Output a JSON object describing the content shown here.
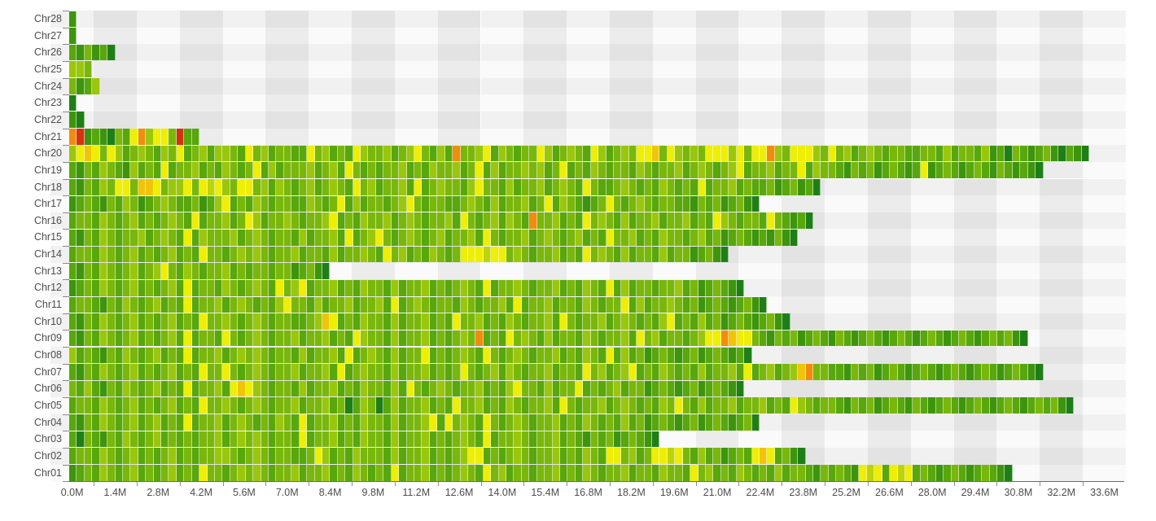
{
  "chart_data": {
    "type": "heatmap",
    "title": "",
    "description": "Per-chromosome density heatmap: each chromosome drawn as a horizontal bar of fixed-size window bins colored from green (low) through yellow and orange to red (high)",
    "xlabel": "",
    "ylabel": "",
    "x_unit": "M",
    "bin_size_mb": 0.25,
    "x_axis_range_mb": [
      0.0,
      33.6
    ],
    "x_tick_labels": [
      "0.0M",
      "1.4M",
      "2.8M",
      "4.2M",
      "5.6M",
      "7.0M",
      "8.4M",
      "9.8M",
      "11.2M",
      "12.6M",
      "14.0M",
      "15.4M",
      "16.8M",
      "18.2M",
      "19.6M",
      "21.0M",
      "22.4M",
      "23.8M",
      "25.2M",
      "26.6M",
      "28.0M",
      "29.4M",
      "30.8M",
      "32.2M",
      "33.6M"
    ],
    "legend_position": "none",
    "grid": "alternating checkerboard split-area",
    "palette": {
      "0": "#1e7f16",
      "1": "#3d950d",
      "2": "#57a70d",
      "3": "#79b70c",
      "4": "#9ac70d",
      "5": "#bdd40b",
      "6": "#eeee07",
      "7": "#f0c40a",
      "8": "#ee8d0e",
      "9": "#d53310"
    },
    "palette_meaning": "0=lowest density (dark green) … 6=yellow, 7=golden, 8=orange, 9=highest density (red)",
    "rows": [
      {
        "name": "Chr28",
        "length_mb": 0.25,
        "cells": "1"
      },
      {
        "name": "Chr27",
        "length_mb": 0.25,
        "cells": "1"
      },
      {
        "name": "Chr26",
        "length_mb": 1.5,
        "cells": "213120"
      },
      {
        "name": "Chr25",
        "length_mb": 0.75,
        "cells": "443"
      },
      {
        "name": "Chr24",
        "length_mb": 1.0,
        "cells": "3124"
      },
      {
        "name": "Chr23",
        "length_mb": 0.25,
        "cells": "0"
      },
      {
        "name": "Chr22",
        "length_mb": 0.5,
        "cells": "10"
      },
      {
        "name": "Chr21",
        "length_mb": 4.25,
        "cells": "89121032684663922"
      },
      {
        "name": "Chr20",
        "length_mb": 33.25,
        "cells": "4676364234324362342443263423322634232643342346324283346243233642343264234366736434366646366843666436342343233223324233241203212310210"
      },
      {
        "name": "Chr19",
        "length_mb": 31.75,
        "cells": "2132432142326233423243236242333423426323233423243342362423343423623243233243233423432346233423362433213231232126123212321321210"
      },
      {
        "name": "Chr18",
        "length_mb": 24.5,
        "cells": "21324366377634463656436634243234234326342334262343324633242334234326322343232432326233423223123120"
      },
      {
        "name": "Chr17",
        "length_mb": 22.5,
        "cells": "123213243123432231246232432332243236242332346323322343242334236243212363234323322132312310"
      },
      {
        "name": "Chr16",
        "length_mb": 24.25,
        "cells": "2332432342323432623342364233432334623243342343233426323424328334232634324233423342326432332632120"
      },
      {
        "name": "Chr15",
        "length_mb": 23.75,
        "cells": "21324323342343262433342343233242334262346323432342334263233423432342326334232433234231232121310"
      },
      {
        "name": "Chr14",
        "length_mb": 21.5,
        "cells": "23324323423234232633234343233423324233432634232432366656634323342326343242332423312310"
      },
      {
        "name": "Chr13",
        "length_mb": 8.5,
        "cells": "2132432342346324323342323323312310"
      },
      {
        "name": "Chr12",
        "length_mb": 22.0,
        "cells": "1232432342323426233243234326346233423243324233423234326233432334232432624233233423123210"
      },
      {
        "name": "Chr11",
        "length_mb": 22.75,
        "cells": "2332132432342326233423432324633242334233426234323324323342623342332432336242334323123212310"
      },
      {
        "name": "Chr10",
        "length_mb": 23.5,
        "cells": "2132432342323423263343234323322347623243324233423263342324323342632334234323246232423123212310"
      },
      {
        "name": "Chr09",
        "length_mb": 31.25,
        "cells": "21324323423234262332632343233423342326433242334232343823263432423324323342634233234668766321323123213212321232123212321232310"
      },
      {
        "name": "Chr08",
        "length_mb": 22.25,
        "cells": "42321324323423262334234343233242334262343242336232343263234323342324326242312321231232120"
      },
      {
        "name": "Chr07",
        "length_mb": 31.75,
        "cells": "2132432342323423263363234323342334262343324233423236323424323342332634234623243232423342623423478332213231232123212321232123210"
      },
      {
        "name": "Chr06",
        "length_mb": 22.0,
        "cells": "3242132432342326233426764323324233423243324263234323342324633242336232342331232123123210"
      },
      {
        "name": "Chr05",
        "length_mb": 32.75,
        "cells": "23324323423234232633432343233423342302430242334232633423243233426323342343232436324233423342326432332132312321321232123212321232310"
      },
      {
        "name": "Chr04",
        "length_mb": 22.5,
        "cells": "213243234234232623342343232432623342324332423346263432632343233423243232423123212312321230"
      },
      {
        "name": "Chr03",
        "length_mb": 19.25,
        "cells": "20321324323423232334234343233262334232433242334232343262334323342321323123210"
      },
      {
        "name": "Chr02",
        "length_mb": 24.0,
        "cells": "2332432342323423233443234323322364232433324233423234662323432334232432663423665632423123267623 10"
      },
      {
        "name": "Chr01",
        "length_mb": 30.75,
        "cells": "123243234232342326332343432334233423243232623342323432634233233423243233423324332634232432324233213232165626562321232123210"
      }
    ]
  },
  "y_axis": {
    "labels_top_to_bottom": [
      "Chr28",
      "Chr27",
      "Chr26",
      "Chr25",
      "Chr24",
      "Chr23",
      "Chr22",
      "Chr21",
      "Chr20",
      "Chr19",
      "Chr18",
      "Chr17",
      "Chr16",
      "Chr15",
      "Chr14",
      "Chr13",
      "Chr12",
      "Chr11",
      "Chr10",
      "Chr09",
      "Chr08",
      "Chr07",
      "Chr06",
      "Chr05",
      "Chr04",
      "Chr03",
      "Chr02",
      "Chr01"
    ]
  },
  "colors": {
    "background_col_light": "#fafafa",
    "background_col_dark": "#ececec",
    "background_row_overlay": "rgba(0,0,0,0.035)",
    "axis_line": "#6b6b6b",
    "tick": "#8a8a8a",
    "label_text": "#4d4d4d"
  }
}
